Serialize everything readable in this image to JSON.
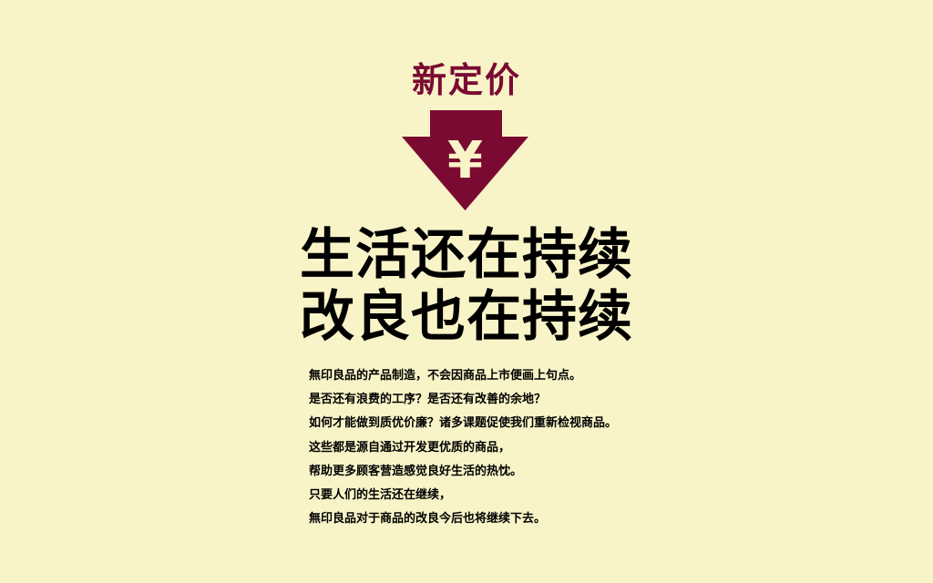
{
  "tag": "新定价",
  "arrow_icon": "yen-down-arrow-icon",
  "yen_symbol": "¥",
  "colors": {
    "background": "#f9f4c8",
    "accent": "#7a0a32",
    "text": "#000000"
  },
  "headline": [
    "生活还在持续",
    "改良也在持续"
  ],
  "body": [
    "無印良品的产品制造，不会因商品上市便画上句点。",
    "是否还有浪费的工序？是否还有改善的余地？",
    "如何才能做到质优价廉？诸多课题促使我们重新检视商品。",
    "这些都是源自通过开发更优质的商品，",
    "帮助更多顾客营造感觉良好生活的热忱。",
    "只要人们的生活还在继续，",
    "無印良品对于商品的改良今后也将继续下去。"
  ]
}
